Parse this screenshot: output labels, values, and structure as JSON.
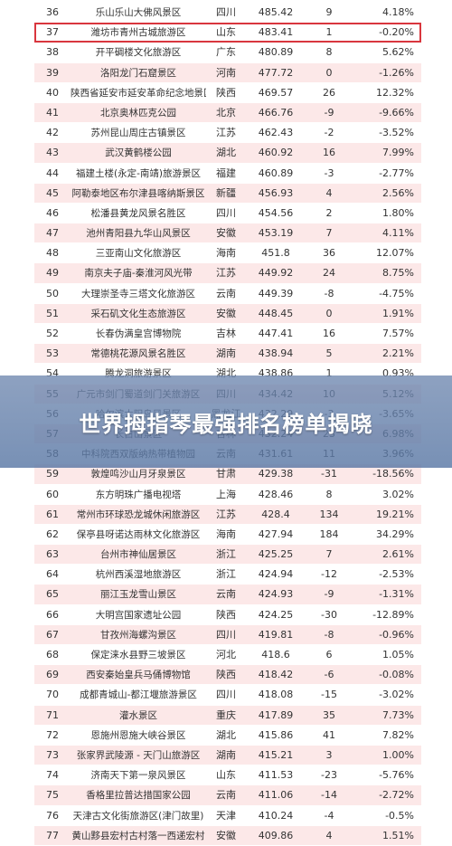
{
  "banner": {
    "title": "世界拇指琴最强排名榜单揭晓"
  },
  "rows": [
    {
      "rank": "36",
      "name": "乐山乐山大佛风景区",
      "prov": "四川",
      "score": "485.42",
      "change": "9",
      "pct": "4.18%"
    },
    {
      "rank": "37",
      "name": "潍坊市青州古城旅游区",
      "prov": "山东",
      "score": "483.41",
      "change": "1",
      "pct": "-0.20%"
    },
    {
      "rank": "38",
      "name": "开平碉楼文化旅游区",
      "prov": "广东",
      "score": "480.89",
      "change": "8",
      "pct": "5.62%"
    },
    {
      "rank": "39",
      "name": "洛阳龙门石窟景区",
      "prov": "河南",
      "score": "477.72",
      "change": "0",
      "pct": "-1.26%"
    },
    {
      "rank": "40",
      "name": "陕西省延安市延安革命纪念地景区",
      "prov": "陕西",
      "score": "469.57",
      "change": "26",
      "pct": "12.32%"
    },
    {
      "rank": "41",
      "name": "北京奥林匹克公园",
      "prov": "北京",
      "score": "466.76",
      "change": "-9",
      "pct": "-9.66%"
    },
    {
      "rank": "42",
      "name": "苏州昆山周庄古镇景区",
      "prov": "江苏",
      "score": "462.43",
      "change": "-2",
      "pct": "-3.52%"
    },
    {
      "rank": "43",
      "name": "武汉黄鹤楼公园",
      "prov": "湖北",
      "score": "460.92",
      "change": "16",
      "pct": "7.99%"
    },
    {
      "rank": "44",
      "name": "福建土楼(永定-南靖)旅游景区",
      "prov": "福建",
      "score": "460.89",
      "change": "-3",
      "pct": "-2.77%"
    },
    {
      "rank": "45",
      "name": "阿勒泰地区布尔津县喀纳斯景区",
      "prov": "新疆",
      "score": "456.93",
      "change": "4",
      "pct": "2.56%"
    },
    {
      "rank": "46",
      "name": "松潘县黄龙风景名胜区",
      "prov": "四川",
      "score": "454.56",
      "change": "2",
      "pct": "1.80%"
    },
    {
      "rank": "47",
      "name": "池州青阳县九华山风景区",
      "prov": "安徽",
      "score": "453.19",
      "change": "7",
      "pct": "4.11%"
    },
    {
      "rank": "48",
      "name": "三亚南山文化旅游区",
      "prov": "海南",
      "score": "451.8",
      "change": "36",
      "pct": "12.07%"
    },
    {
      "rank": "49",
      "name": "南京夫子庙-秦淮河风光带",
      "prov": "江苏",
      "score": "449.92",
      "change": "24",
      "pct": "8.75%"
    },
    {
      "rank": "50",
      "name": "大理崇圣寺三塔文化旅游区",
      "prov": "云南",
      "score": "449.39",
      "change": "-8",
      "pct": "-4.75%"
    },
    {
      "rank": "51",
      "name": "采石矶文化生态旅游区",
      "prov": "安徽",
      "score": "448.45",
      "change": "0",
      "pct": "1.91%"
    },
    {
      "rank": "52",
      "name": "长春伪满皇宫博物院",
      "prov": "吉林",
      "score": "447.41",
      "change": "16",
      "pct": "7.57%"
    },
    {
      "rank": "53",
      "name": "常德桃花源风景名胜区",
      "prov": "湖南",
      "score": "438.94",
      "change": "5",
      "pct": "2.21%"
    },
    {
      "rank": "54",
      "name": "腾龙洞旅游景区",
      "prov": "湖北",
      "score": "438.86",
      "change": "1",
      "pct": "0.93%"
    },
    {
      "rank": "55",
      "name": "广元市剑门蜀道剑门关旅游区",
      "prov": "四川",
      "score": "434.42",
      "change": "10",
      "pct": "5.12%"
    },
    {
      "rank": "56",
      "name": "哈尔滨太阳岛风景区",
      "prov": "黑龙江",
      "score": "432.29",
      "change": "-3",
      "pct": "-3.65%"
    },
    {
      "rank": "57",
      "name": "长白山景区",
      "prov": "吉林",
      "score": "432.24",
      "change": "23",
      "pct": "6.98%"
    },
    {
      "rank": "58",
      "name": "中科院西双版纳热带植物园",
      "prov": "云南",
      "score": "431.61",
      "change": "11",
      "pct": "3.96%"
    },
    {
      "rank": "59",
      "name": "敦煌鸣沙山月牙泉景区",
      "prov": "甘肃",
      "score": "429.38",
      "change": "-31",
      "pct": "-18.56%"
    },
    {
      "rank": "60",
      "name": "东方明珠广播电视塔",
      "prov": "上海",
      "score": "428.46",
      "change": "8",
      "pct": "3.02%"
    },
    {
      "rank": "61",
      "name": "常州市环球恐龙城休闲旅游区",
      "prov": "江苏",
      "score": "428.4",
      "change": "134",
      "pct": "19.21%"
    },
    {
      "rank": "62",
      "name": "保亭县呀诺达雨林文化旅游区",
      "prov": "海南",
      "score": "427.94",
      "change": "184",
      "pct": "34.29%"
    },
    {
      "rank": "63",
      "name": "台州市神仙居景区",
      "prov": "浙江",
      "score": "425.25",
      "change": "7",
      "pct": "2.61%"
    },
    {
      "rank": "64",
      "name": "杭州西溪湿地旅游区",
      "prov": "浙江",
      "score": "424.94",
      "change": "-12",
      "pct": "-2.53%"
    },
    {
      "rank": "65",
      "name": "丽江玉龙雪山景区",
      "prov": "云南",
      "score": "424.93",
      "change": "-9",
      "pct": "-1.31%"
    },
    {
      "rank": "66",
      "name": "大明宫国家遗址公园",
      "prov": "陕西",
      "score": "424.25",
      "change": "-30",
      "pct": "-12.89%"
    },
    {
      "rank": "67",
      "name": "甘孜州海螺沟景区",
      "prov": "四川",
      "score": "419.81",
      "change": "-8",
      "pct": "-0.96%"
    },
    {
      "rank": "68",
      "name": "保定涞水县野三坡景区",
      "prov": "河北",
      "score": "418.6",
      "change": "6",
      "pct": "1.05%"
    },
    {
      "rank": "69",
      "name": "西安秦始皇兵马俑博物馆",
      "prov": "陕西",
      "score": "418.42",
      "change": "-6",
      "pct": "-0.08%"
    },
    {
      "rank": "70",
      "name": "成都青城山-都江堰旅游景区",
      "prov": "四川",
      "score": "418.08",
      "change": "-15",
      "pct": "-3.02%"
    },
    {
      "rank": "71",
      "name": "灌水景区",
      "prov": "重庆",
      "score": "417.89",
      "change": "35",
      "pct": "7.73%"
    },
    {
      "rank": "72",
      "name": "恩施州恩施大峡谷景区",
      "prov": "湖北",
      "score": "415.86",
      "change": "41",
      "pct": "7.82%"
    },
    {
      "rank": "73",
      "name": "张家界武陵源 - 天门山旅游区",
      "prov": "湖南",
      "score": "415.21",
      "change": "3",
      "pct": "1.00%"
    },
    {
      "rank": "74",
      "name": "济南天下第一泉风景区",
      "prov": "山东",
      "score": "411.53",
      "change": "-23",
      "pct": "-5.76%"
    },
    {
      "rank": "75",
      "name": "香格里拉普达措国家公园",
      "prov": "云南",
      "score": "411.06",
      "change": "-14",
      "pct": "-2.72%"
    },
    {
      "rank": "76",
      "name": "天津古文化街旅游区(津门故里)",
      "prov": "天津",
      "score": "410.24",
      "change": "-4",
      "pct": "-0.5%"
    },
    {
      "rank": "77",
      "name": "黄山黟县宏村古村落一西递宏村",
      "prov": "安徽",
      "score": "409.86",
      "change": "4",
      "pct": "1.51%"
    }
  ]
}
